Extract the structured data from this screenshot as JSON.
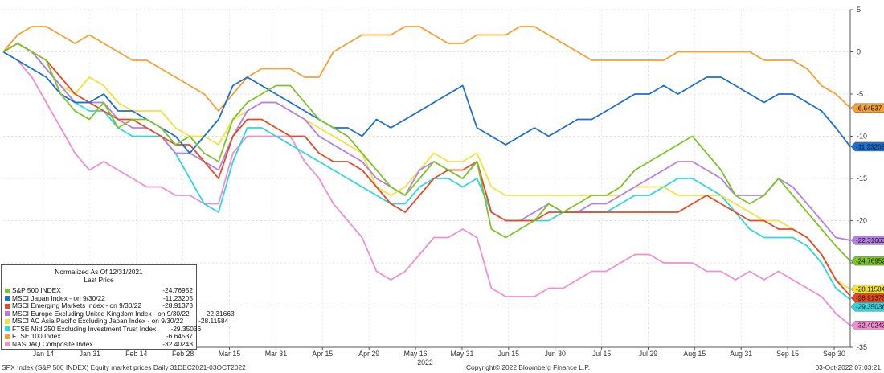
{
  "chart_data": {
    "type": "line",
    "ylim": [
      -35,
      5
    ],
    "y_ticks": [
      5,
      0,
      -5,
      -10,
      -15,
      -20,
      -25,
      -30,
      -35
    ],
    "x_ticks": [
      "Jan 14",
      "Jan 31",
      "Feb 14",
      "Feb 28",
      "Mar 15",
      "Mar 31",
      "Apr 15",
      "Apr 29",
      "May 16",
      "May 31",
      "Jun 15",
      "Jun 30",
      "Jul 15",
      "Jul 29",
      "Aug 15",
      "Aug 31",
      "Sep 15",
      "Sep 30"
    ],
    "x_year_label": "2022",
    "grid": true,
    "legend": {
      "header_line1": "Normalized As Of 12/31/2021",
      "header_line2": "Last Price",
      "placement": "bottom-left"
    },
    "series": [
      {
        "name": "S&P 500 INDEX",
        "color": "#7dc42a",
        "last": -24.76952,
        "last_label": "-24.76952",
        "values": [
          0,
          1,
          0,
          -1,
          -5,
          -7,
          -8,
          -6,
          -9,
          -8,
          -8,
          -9,
          -11,
          -10,
          -12,
          -13,
          -8,
          -6,
          -5,
          -4,
          -4,
          -6,
          -8,
          -9,
          -10,
          -12,
          -14,
          -16,
          -17,
          -15,
          -13,
          -14,
          -15,
          -13,
          -21,
          -22,
          -21,
          -20,
          -18,
          -19,
          -18,
          -17,
          -17,
          -16,
          -14,
          -13,
          -12,
          -11,
          -10,
          -12,
          -14,
          -17,
          -18,
          -17,
          -15,
          -17,
          -19,
          -21,
          -23,
          -24.77
        ]
      },
      {
        "name": "MSCI Japan Index -  on 9/30/22",
        "color": "#1d6fd0",
        "last": -11.23205,
        "last_label": "-11.23205",
        "values": [
          0,
          -1,
          -2,
          -3,
          -5,
          -6,
          -6,
          -5,
          -7,
          -7,
          -8,
          -9,
          -10,
          -12,
          -10,
          -8,
          -4,
          -3,
          -4,
          -5,
          -6,
          -7,
          -8,
          -9,
          -9,
          -10,
          -8,
          -9,
          -8,
          -7,
          -6,
          -5,
          -4,
          -9,
          -10,
          -11,
          -10,
          -9,
          -10,
          -9,
          -8,
          -8,
          -7,
          -6,
          -5,
          -5,
          -4,
          -5,
          -4,
          -3,
          -3,
          -4,
          -5,
          -6,
          -5,
          -5,
          -6,
          -7,
          -9,
          -11.23
        ]
      },
      {
        "name": "MSCI Emerging Markets Index -  on 9/30/22",
        "color": "#e74a25",
        "last": -28.91373,
        "last_label": "-28.91373",
        "values": [
          0,
          1,
          0,
          -1,
          -3,
          -5,
          -6,
          -7,
          -8,
          -8,
          -9,
          -10,
          -11,
          -11,
          -13,
          -15,
          -10,
          -8,
          -8,
          -9,
          -10,
          -10,
          -12,
          -13,
          -13,
          -14,
          -16,
          -18,
          -19,
          -17,
          -15,
          -14,
          -14,
          -13,
          -19,
          -20,
          -20,
          -20,
          -19,
          -19,
          -19,
          -19,
          -19,
          -19,
          -19,
          -19,
          -19,
          -19,
          -18,
          -17,
          -18,
          -19,
          -20,
          -20,
          -21,
          -21,
          -22,
          -24,
          -27,
          -28.91
        ]
      },
      {
        "name": "MSCI Europe Excluding United Kingdom Index -  on 9/30/22",
        "color": "#b57ee6",
        "last": -22.31663,
        "last_label": "-22.31663",
        "values": [
          0,
          1,
          0,
          -2,
          -4,
          -6,
          -6,
          -6,
          -8,
          -9,
          -9,
          -10,
          -12,
          -12,
          -13,
          -14,
          -10,
          -7,
          -6,
          -6,
          -7,
          -8,
          -10,
          -11,
          -12,
          -13,
          -15,
          -16,
          -17,
          -14,
          -13,
          -14,
          -15,
          -13,
          -19,
          -20,
          -20,
          -19,
          -18,
          -19,
          -19,
          -18,
          -18,
          -17,
          -16,
          -15,
          -14,
          -13,
          -13,
          -14,
          -15,
          -17,
          -17,
          -17,
          -15,
          -16,
          -18,
          -20,
          -22,
          -22.32
        ]
      },
      {
        "name": "MSCI AC Asia Pacific Excluding Japan Index -  on 9/30/22",
        "color": "#f2e23a",
        "last": -28.11584,
        "last_label": "-28.11584",
        "values": [
          0,
          1,
          0,
          -2,
          -4,
          -5,
          -3,
          -4,
          -6,
          -7,
          -7,
          -7,
          -9,
          -10,
          -10,
          -11,
          -8,
          -7,
          -6,
          -6,
          -7,
          -8,
          -9,
          -10,
          -11,
          -12,
          -16,
          -17,
          -16,
          -14,
          -12,
          -13,
          -13,
          -12,
          -16,
          -17,
          -17,
          -17,
          -17,
          -17,
          -17,
          -17,
          -17,
          -17,
          -16,
          -16,
          -16,
          -17,
          -17,
          -17,
          -17,
          -18,
          -19,
          -20,
          -20,
          -21,
          -22,
          -24,
          -27,
          -28.12
        ]
      },
      {
        "name": "FTSE Mid 250 Excluding Investment Trust Index",
        "color": "#2ed6e0",
        "last": -29.35036,
        "last_label": "-29.35036",
        "values": [
          0,
          1,
          0,
          -2,
          -4,
          -6,
          -7,
          -7,
          -9,
          -10,
          -10,
          -10,
          -12,
          -15,
          -18,
          -19,
          -13,
          -9,
          -9,
          -10,
          -11,
          -12,
          -13,
          -14,
          -15,
          -16,
          -17,
          -18,
          -18,
          -16,
          -15,
          -15,
          -16,
          -15,
          -19,
          -20,
          -20,
          -20,
          -20,
          -19,
          -19,
          -19,
          -19,
          -18,
          -17,
          -17,
          -16,
          -15,
          -15,
          -16,
          -17,
          -19,
          -21,
          -22,
          -22,
          -22,
          -23,
          -25,
          -28,
          -29.35
        ]
      },
      {
        "name": "FTSE 100 Index",
        "color": "#f5a033",
        "last": -6.64537,
        "last_label": "-6.64537",
        "values": [
          0,
          2,
          3,
          3,
          2,
          1,
          2,
          1,
          0,
          -1,
          -1,
          -2,
          -3,
          -4,
          -5,
          -7,
          -5,
          -3,
          -2,
          -2,
          -2,
          -3,
          -3,
          0,
          1,
          2,
          2,
          2,
          3,
          3,
          2,
          1,
          1,
          2,
          2,
          2,
          3,
          3,
          2,
          1,
          0,
          -1,
          -1,
          -1,
          -1,
          -1,
          -1,
          0,
          0,
          0,
          0,
          0,
          0,
          -1,
          -1,
          -1,
          -2,
          -4,
          -5,
          -6.65
        ]
      },
      {
        "name": "NASDAQ Composite Index",
        "color": "#ef8fcf",
        "last": -32.40243,
        "last_label": "-32.40243",
        "values": [
          0,
          -1,
          -3,
          -6,
          -9,
          -12,
          -14,
          -13,
          -14,
          -15,
          -16,
          -16,
          -17,
          -17,
          -18,
          -18,
          -12,
          -10,
          -10,
          -10,
          -10,
          -13,
          -15,
          -18,
          -20,
          -22,
          -26,
          -27,
          -26,
          -24,
          -22,
          -22,
          -21,
          -22,
          -28,
          -29,
          -29,
          -29,
          -28,
          -28,
          -27,
          -26,
          -26,
          -25,
          -24,
          -24,
          -25,
          -25,
          -25,
          -26,
          -26,
          -27,
          -26,
          -27,
          -26,
          -27,
          -28,
          -29,
          -31,
          -32.4
        ]
      }
    ]
  },
  "footer": {
    "left": "SPX Index (S&P 500 INDEX) Equity market prices  Daily 31DEC2021-03OCT2022",
    "center": "Copyright© 2022 Bloomberg Finance L.P.",
    "right": "03-Oct-2022 07:03:21"
  }
}
